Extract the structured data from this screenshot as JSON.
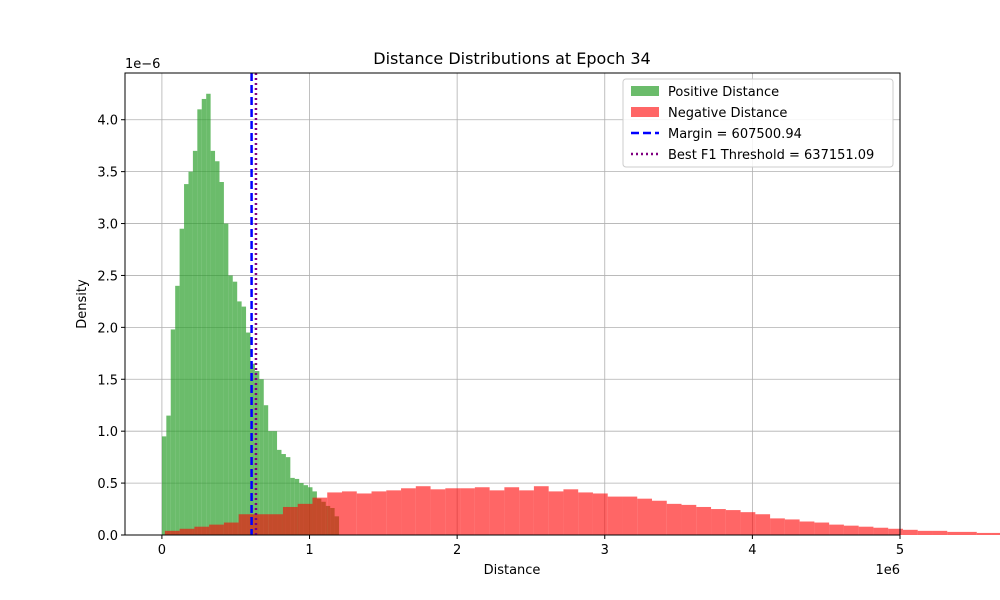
{
  "chart_data": {
    "type": "histogram",
    "title": "Distance Distributions at Epoch 34",
    "xlabel": "Distance",
    "ylabel": "Density",
    "x_offset_label": "1e6",
    "y_offset_label": "1e−6",
    "xlim": [
      -250000,
      5000000
    ],
    "ylim": [
      0,
      4.45
    ],
    "x_ticks": [
      0,
      1,
      2,
      3,
      4,
      5
    ],
    "y_ticks": [
      0.0,
      0.5,
      1.0,
      1.5,
      2.0,
      2.5,
      3.0,
      3.5,
      4.0
    ],
    "x_tick_scale": 1000000,
    "grid": true,
    "legend_position": "top-right",
    "series": [
      {
        "name": "Positive Distance",
        "color": "#2ca02c",
        "opacity": 0.7,
        "bin_start": 0,
        "bin_width": 30000,
        "values": [
          0.95,
          1.15,
          1.98,
          2.4,
          2.95,
          3.38,
          3.5,
          3.7,
          4.1,
          4.2,
          4.25,
          3.7,
          3.6,
          3.4,
          3.0,
          2.5,
          2.44,
          2.25,
          2.2,
          1.95,
          1.65,
          1.58,
          1.5,
          1.25,
          1.0,
          1.0,
          0.82,
          0.78,
          0.75,
          0.55,
          0.54,
          0.5,
          0.48,
          0.46,
          0.42,
          0.35,
          0.32,
          0.28,
          0.26,
          0.18
        ]
      },
      {
        "name": "Negative Distance",
        "color": "#ff0000",
        "opacity": 0.6,
        "bin_start": 20000,
        "bin_width": 100000,
        "values": [
          0.04,
          0.06,
          0.08,
          0.1,
          0.12,
          0.2,
          0.2,
          0.2,
          0.27,
          0.3,
          0.36,
          0.41,
          0.42,
          0.4,
          0.42,
          0.43,
          0.45,
          0.47,
          0.44,
          0.45,
          0.45,
          0.46,
          0.43,
          0.46,
          0.43,
          0.47,
          0.42,
          0.44,
          0.41,
          0.4,
          0.37,
          0.37,
          0.35,
          0.33,
          0.3,
          0.29,
          0.27,
          0.25,
          0.24,
          0.22,
          0.2,
          0.16,
          0.15,
          0.13,
          0.12,
          0.1,
          0.09,
          0.08,
          0.07,
          0.06,
          0.05,
          0.04,
          0.04,
          0.03,
          0.03,
          0.02,
          0.02,
          0.01,
          0.01,
          0.01,
          0.01,
          0.0,
          0.0,
          0.0,
          0.0,
          0.0,
          0.0,
          0.0,
          0.0,
          0.0,
          0.0,
          0.0,
          0.0,
          0.0,
          0.0,
          0.0,
          0.03
        ]
      }
    ],
    "lines": [
      {
        "name": "Margin = 607500.94",
        "x": 607500.94,
        "color": "#0000ff",
        "style": "dashed"
      },
      {
        "name": "Best F1 Threshold = 637151.09",
        "x": 637151.09,
        "color": "#800080",
        "style": "dotted"
      }
    ]
  }
}
